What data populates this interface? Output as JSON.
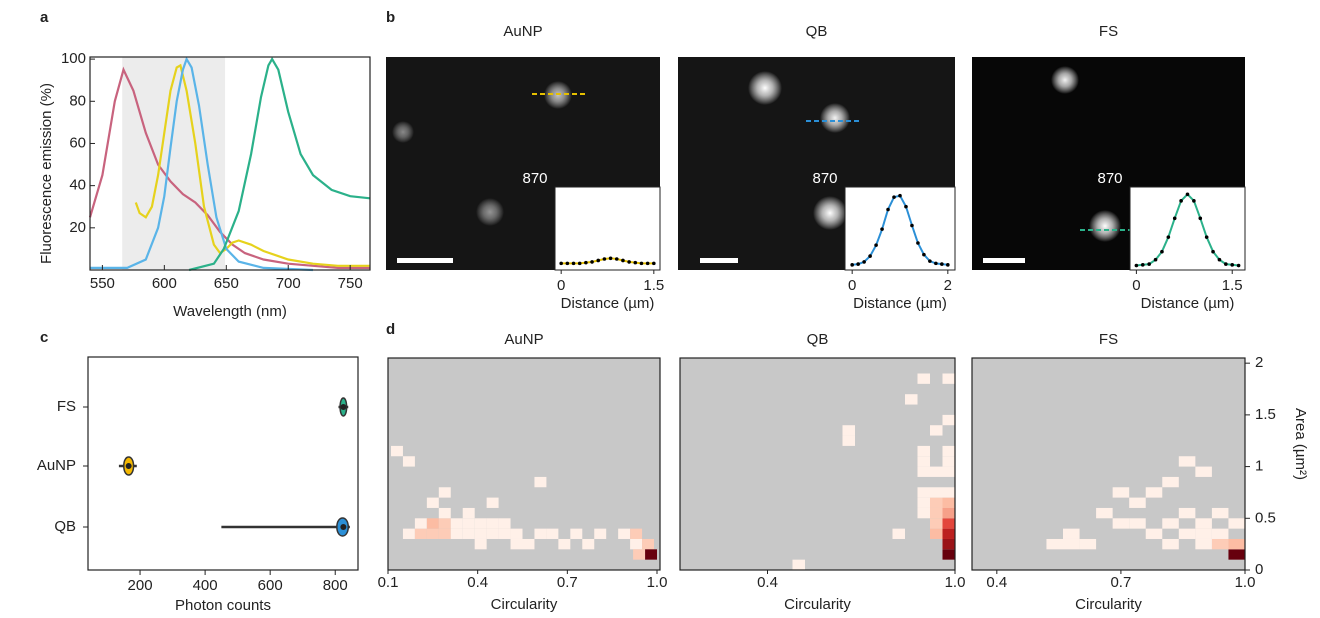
{
  "chart_data": [
    {
      "type": "line",
      "panel_label": "a",
      "xlabel": "Wavelength (nm)",
      "ylabel": "Fluorescence emission (%)",
      "xlim": [
        540,
        766
      ],
      "ylim": [
        0,
        101
      ],
      "xticks": [
        550,
        600,
        650,
        700,
        750
      ],
      "yticks": [
        20,
        40,
        60,
        80,
        100
      ],
      "shade": [
        566,
        649
      ],
      "series": [
        {
          "color": "#c8637e",
          "x": [
            540,
            550,
            560,
            567,
            575,
            585,
            595,
            605,
            615,
            625,
            635,
            645,
            655,
            665,
            680,
            700,
            720,
            740,
            766
          ],
          "values": [
            25,
            45,
            80,
            95,
            85,
            65,
            50,
            42,
            36,
            32,
            26,
            18,
            12,
            8,
            5,
            3,
            2,
            1,
            1
          ]
        },
        {
          "color": "#e6d21c",
          "x": [
            577,
            580,
            585,
            590,
            595,
            600,
            605,
            610,
            613,
            618,
            625,
            632,
            640,
            645,
            650,
            655,
            660,
            670,
            680,
            700,
            720,
            740,
            766
          ],
          "values": [
            32,
            27,
            25,
            30,
            45,
            65,
            85,
            96,
            97,
            85,
            60,
            30,
            12,
            8,
            10,
            13,
            14,
            12,
            9,
            5,
            3,
            2,
            2
          ]
        },
        {
          "color": "#5ab4e8",
          "x": [
            540,
            570,
            585,
            595,
            600,
            605,
            610,
            615,
            618,
            622,
            628,
            635,
            642,
            650,
            660,
            680,
            720
          ],
          "values": [
            1,
            1,
            5,
            20,
            35,
            58,
            80,
            95,
            100,
            96,
            78,
            50,
            25,
            10,
            4,
            1,
            0
          ]
        },
        {
          "color": "#2bb18a",
          "x": [
            620,
            640,
            648,
            660,
            670,
            678,
            684,
            687,
            692,
            700,
            710,
            720,
            735,
            750,
            766
          ],
          "values": [
            0,
            3,
            10,
            28,
            55,
            82,
            97,
            100,
            95,
            75,
            55,
            45,
            38,
            35,
            34
          ]
        }
      ]
    },
    {
      "type": "profile",
      "panel_label": "b",
      "title": "AuNP",
      "annotation": "870",
      "xlabel": "Distance (µm)",
      "xlim": [
        -0.1,
        1.6
      ],
      "ylim": [
        0,
        1.1
      ],
      "xticks": [
        0,
        1.5
      ],
      "color": "#e6c000",
      "marker_color": "#000000",
      "x": [
        0,
        0.1,
        0.2,
        0.3,
        0.4,
        0.5,
        0.6,
        0.7,
        0.8,
        0.9,
        1.0,
        1.1,
        1.2,
        1.3,
        1.4,
        1.5
      ],
      "values": [
        0.05,
        0.05,
        0.05,
        0.05,
        0.06,
        0.07,
        0.09,
        0.11,
        0.12,
        0.11,
        0.09,
        0.07,
        0.06,
        0.05,
        0.05,
        0.05
      ]
    },
    {
      "type": "profile",
      "title": "QB",
      "annotation": "870",
      "xlabel": "Distance (µm)",
      "xlim": [
        -0.15,
        2.15
      ],
      "ylim": [
        0,
        1.1
      ],
      "xticks": [
        0,
        2
      ],
      "color": "#2b8fd6",
      "marker_color": "#000000",
      "x": [
        0,
        0.125,
        0.25,
        0.375,
        0.5,
        0.625,
        0.75,
        0.875,
        1.0,
        1.125,
        1.25,
        1.375,
        1.5,
        1.625,
        1.75,
        1.875,
        2.0
      ],
      "values": [
        0.03,
        0.04,
        0.07,
        0.15,
        0.3,
        0.52,
        0.79,
        0.96,
        0.98,
        0.83,
        0.57,
        0.33,
        0.17,
        0.08,
        0.05,
        0.04,
        0.03
      ]
    },
    {
      "type": "profile",
      "title": "FS",
      "annotation": "870",
      "xlabel": "Distance (µm)",
      "xlim": [
        -0.1,
        1.7
      ],
      "ylim": [
        0,
        1.1
      ],
      "xticks": [
        0,
        1.5
      ],
      "color": "#2bb18a",
      "marker_color": "#000000",
      "x": [
        0,
        0.1,
        0.2,
        0.3,
        0.4,
        0.5,
        0.6,
        0.7,
        0.8,
        0.9,
        1.0,
        1.1,
        1.2,
        1.3,
        1.4,
        1.5,
        1.6
      ],
      "values": [
        0.02,
        0.03,
        0.04,
        0.1,
        0.21,
        0.41,
        0.67,
        0.91,
        1.0,
        0.91,
        0.67,
        0.41,
        0.21,
        0.1,
        0.04,
        0.03,
        0.02
      ]
    },
    {
      "type": "violin",
      "panel_label": "c",
      "xlabel": "Photon counts",
      "xlim": [
        40,
        870
      ],
      "xticks": [
        200,
        400,
        600,
        800
      ],
      "categories": [
        "FS",
        "AuNP",
        "QB"
      ],
      "colors": [
        "#2bb18a",
        "#f5b800",
        "#2b8fd6"
      ],
      "min": [
        810,
        135,
        450
      ],
      "q1": [
        815,
        150,
        805
      ],
      "median": [
        825,
        165,
        825
      ],
      "q3": [
        835,
        180,
        840
      ],
      "max": [
        840,
        190,
        845
      ]
    },
    {
      "type": "heatmap",
      "panel_label": "d",
      "title": "AuNP",
      "xlabel": "Circularity",
      "xlim": [
        0.1,
        1.01
      ],
      "ylim": [
        0,
        2.05
      ],
      "xticks": [
        0.1,
        0.4,
        0.7,
        {
          "value": 1,
          "label": "1.0"
        }
      ],
      "cells": {
        "x": [
          0.17,
          0.21,
          0.25,
          0.29,
          0.33,
          0.37,
          0.41,
          0.45,
          0.49,
          0.53,
          0.61,
          0.65,
          0.73,
          0.81,
          0.89,
          0.93,
          0.21,
          0.25,
          0.29,
          0.33,
          0.37,
          0.41,
          0.45,
          0.49,
          0.41,
          0.53,
          0.57,
          0.69,
          0.77,
          0.93,
          0.97,
          0.29,
          0.37,
          0.25,
          0.45,
          0.29,
          0.61,
          0.17,
          0.13,
          0.98,
          0.94
        ],
        "y": [
          0.35,
          0.35,
          0.35,
          0.35,
          0.35,
          0.35,
          0.35,
          0.35,
          0.35,
          0.35,
          0.35,
          0.35,
          0.35,
          0.35,
          0.35,
          0.35,
          0.45,
          0.45,
          0.45,
          0.45,
          0.45,
          0.45,
          0.45,
          0.45,
          0.25,
          0.25,
          0.25,
          0.25,
          0.25,
          0.25,
          0.25,
          0.55,
          0.55,
          0.65,
          0.65,
          0.75,
          0.85,
          1.05,
          1.15,
          0.15,
          0.15
        ],
        "values": [
          1,
          2,
          2,
          2,
          1,
          1,
          1,
          1,
          1,
          1,
          1,
          1,
          1,
          1,
          1,
          2,
          1,
          3,
          2,
          1,
          1,
          1,
          1,
          1,
          1,
          1,
          1,
          1,
          1,
          1,
          2,
          1,
          1,
          1,
          1,
          1,
          1,
          1,
          1,
          20,
          2
        ]
      }
    },
    {
      "type": "heatmap",
      "title": "QB",
      "xlabel": "Circularity",
      "xlim": [
        0.12,
        1.0
      ],
      "ylim": [
        0,
        2.05
      ],
      "xticks": [
        0.4,
        {
          "value": 1,
          "label": "1.0"
        }
      ],
      "cells": {
        "x": [
          0.98,
          0.98,
          0.98,
          0.98,
          0.98,
          0.98,
          0.94,
          0.94,
          0.94,
          0.94,
          0.9,
          0.9,
          0.98,
          0.94,
          0.9,
          0.98,
          0.94,
          0.9,
          0.98,
          0.9,
          0.98,
          0.9,
          0.94,
          0.98,
          0.66,
          0.66,
          0.86,
          0.9,
          0.98,
          0.82,
          0.5
        ],
        "y": [
          0.15,
          0.25,
          0.35,
          0.45,
          0.55,
          0.65,
          0.35,
          0.45,
          0.55,
          0.65,
          0.55,
          0.65,
          0.75,
          0.75,
          0.75,
          0.95,
          0.95,
          0.95,
          1.05,
          1.05,
          1.15,
          1.15,
          1.35,
          1.45,
          1.25,
          1.35,
          1.65,
          1.85,
          1.85,
          0.35,
          0.05
        ],
        "values": [
          20,
          15,
          12,
          8,
          4,
          3,
          3,
          2,
          2,
          2,
          1,
          1,
          1,
          1,
          1,
          1,
          1,
          1,
          1,
          1,
          1,
          1,
          1,
          1,
          1,
          1,
          1,
          1,
          1,
          1,
          1
        ]
      }
    },
    {
      "type": "heatmap",
      "title": "FS",
      "xlabel": "Circularity",
      "ylabel": "Area (µm²)",
      "xlim": [
        0.34,
        1.0
      ],
      "ylim": [
        0,
        2.05
      ],
      "xticks": [
        0.4,
        0.7,
        {
          "value": 1,
          "label": "1.0"
        }
      ],
      "yticks": [
        0,
        0.5,
        1,
        1.5,
        2
      ],
      "cells": {
        "x": [
          0.98,
          0.98,
          0.94,
          0.94,
          0.9,
          0.9,
          0.86,
          0.82,
          0.82,
          0.78,
          0.74,
          0.7,
          0.66,
          0.62,
          0.58,
          0.54,
          0.58,
          0.74,
          0.7,
          0.86,
          0.9,
          0.94,
          0.86,
          0.9,
          0.82,
          0.78,
          0.98
        ],
        "y": [
          0.15,
          0.25,
          0.25,
          0.35,
          0.25,
          0.35,
          0.35,
          0.25,
          0.45,
          0.35,
          0.45,
          0.45,
          0.55,
          0.25,
          0.25,
          0.25,
          0.35,
          0.65,
          0.75,
          0.55,
          0.45,
          0.55,
          1.05,
          0.95,
          0.85,
          0.75,
          0.45
        ],
        "values": [
          20,
          3,
          2,
          1,
          1,
          1,
          1,
          1,
          1,
          1,
          1,
          1,
          1,
          1,
          1,
          1,
          1,
          1,
          1,
          1,
          1,
          1,
          1,
          1,
          1,
          1,
          1
        ]
      }
    }
  ]
}
